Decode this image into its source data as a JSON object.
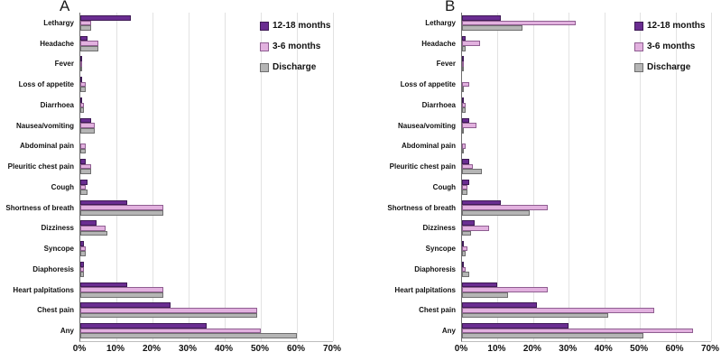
{
  "figure": {
    "description": "Two-panel horizontal grouped bar chart of symptom prevalence"
  },
  "legend": [
    {
      "label": "12-18 months",
      "color": "#6A2D91",
      "border": "#3E1A55"
    },
    {
      "label": "3-6 months",
      "color": "#E2B1DF",
      "border": "#8F5E91"
    },
    {
      "label": "Discharge",
      "color": "#B5B5B5",
      "border": "#6F6F6F"
    }
  ],
  "axis": {
    "ticks": [
      "0%",
      "10%",
      "20%",
      "30%",
      "40%",
      "50%",
      "60%",
      "70%"
    ],
    "max": 70
  },
  "chart_data": [
    {
      "type": "bar",
      "orientation": "horizontal",
      "title": "A",
      "xlabel": "",
      "xlim": [
        0,
        70
      ],
      "grid": true,
      "legend_position": "inside-upper-right",
      "categories": [
        "Lethargy",
        "Headache",
        "Fever",
        "Loss of appetite",
        "Diarrhoea",
        "Nausea/vomiting",
        "Abdominal pain",
        "Pleuritic chest pain",
        "Cough",
        "Shortness of breath",
        "Dizziness",
        "Syncope",
        "Diaphoresis",
        "Heart palpitations",
        "Chest pain",
        "Any"
      ],
      "series": [
        {
          "name": "12-18 months",
          "values": [
            14,
            2,
            0.5,
            0.5,
            0.5,
            3,
            0,
            1.5,
            2,
            13,
            4.5,
            1,
            1,
            13,
            25,
            35
          ]
        },
        {
          "name": "3-6 months",
          "values": [
            3,
            5,
            0.5,
            1.5,
            1,
            4,
            1.5,
            3,
            1.5,
            23,
            7,
            1.5,
            1,
            23,
            49,
            50
          ]
        },
        {
          "name": "Discharge",
          "values": [
            3,
            5,
            0.5,
            1.5,
            1,
            4,
            1.5,
            3,
            2,
            23,
            7.5,
            1.5,
            1,
            23,
            49,
            60
          ]
        }
      ]
    },
    {
      "type": "bar",
      "orientation": "horizontal",
      "title": "B",
      "xlabel": "",
      "xlim": [
        0,
        70
      ],
      "grid": true,
      "legend_position": "inside-upper-right",
      "categories": [
        "Lethargy",
        "Headache",
        "Fever",
        "Loss of appetite",
        "Diarrhoea",
        "Nausea/vomiting",
        "Abdominal pain",
        "Pleuritic chest pain",
        "Cough",
        "Shortness of breath",
        "Dizziness",
        "Syncope",
        "Diaphoresis",
        "Heart palpitations",
        "Chest pain",
        "Any"
      ],
      "series": [
        {
          "name": "12-18 months",
          "values": [
            11,
            1,
            0.5,
            0,
            0.5,
            2,
            0,
            2,
            2,
            11,
            3.5,
            0.5,
            0.5,
            10,
            21,
            30
          ]
        },
        {
          "name": "3-6 months",
          "values": [
            32,
            5,
            0.5,
            2,
            1,
            4,
            1,
            3,
            1.5,
            24,
            7.5,
            1.5,
            1,
            24,
            54,
            65
          ]
        },
        {
          "name": "Discharge",
          "values": [
            17,
            1,
            0.5,
            0.5,
            1,
            0.5,
            0.5,
            5.5,
            1.5,
            19,
            2.5,
            1,
            2,
            13,
            41,
            51
          ]
        }
      ]
    }
  ]
}
